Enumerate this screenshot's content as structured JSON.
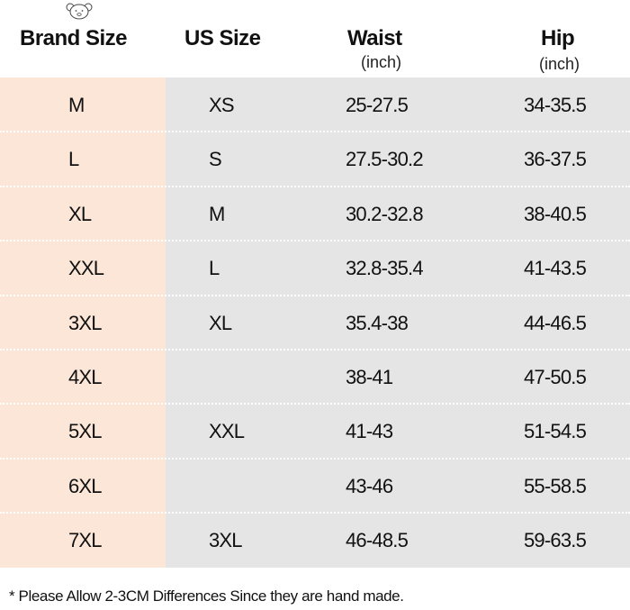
{
  "headers": {
    "brand_size": "Brand Size",
    "us_size": "US Size",
    "waist": "Waist",
    "waist_unit": "(inch)",
    "hip": "Hip",
    "hip_unit": "(inch)"
  },
  "rows": [
    {
      "brand": "M",
      "us": "XS",
      "waist": "25-27.5",
      "hip": "34-35.5"
    },
    {
      "brand": "L",
      "us": "S",
      "waist": "27.5-30.2",
      "hip": "36-37.5"
    },
    {
      "brand": "XL",
      "us": "M",
      "waist": "30.2-32.8",
      "hip": "38-40.5"
    },
    {
      "brand": "XXL",
      "us": "L",
      "waist": "32.8-35.4",
      "hip": "41-43.5"
    },
    {
      "brand": "3XL",
      "us": "XL",
      "waist": "35.4-38",
      "hip": "44-46.5"
    },
    {
      "brand": "4XL",
      "us": "",
      "waist": "38-41",
      "hip": "47-50.5"
    },
    {
      "brand": "5XL",
      "us": "XXL",
      "waist": "41-43",
      "hip": "51-54.5"
    },
    {
      "brand": "6XL",
      "us": "",
      "waist": "43-46",
      "hip": "55-58.5"
    },
    {
      "brand": "7XL",
      "us": "3XL",
      "waist": "46-48.5",
      "hip": "59-63.5"
    }
  ],
  "note": "* Please Allow 2-3CM Differences Since they are hand made.",
  "colors": {
    "brand_column_bg": "#fce6d8",
    "table_bg": "#e5e5e5",
    "header_bg": "#ffffff"
  },
  "icons": {
    "logo": "bear-head-icon"
  }
}
